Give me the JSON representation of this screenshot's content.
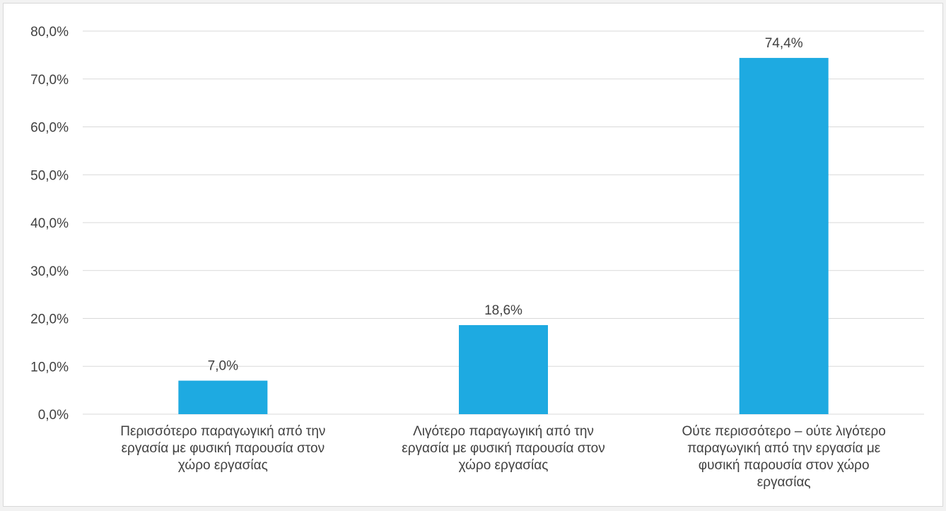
{
  "chart_data": {
    "type": "bar",
    "categories": [
      [
        "Περισσότερο παραγωγική από την",
        "εργασία με φυσική παρουσία στον",
        "χώρο εργασίας"
      ],
      [
        "Λιγότερο παραγωγική από την",
        "εργασία με φυσική παρουσία στον",
        "χώρο εργασίας"
      ],
      [
        "Ούτε περισσότερο – ούτε λιγότερο",
        "παραγωγική από την εργασία με",
        "φυσική παρουσία στον χώρο",
        "εργασίας"
      ]
    ],
    "values": [
      7.0,
      18.6,
      74.4
    ],
    "value_labels": [
      "7,0%",
      "18,6%",
      "74,4%"
    ],
    "ylim": [
      0,
      80
    ],
    "yticks": [
      0,
      10,
      20,
      30,
      40,
      50,
      60,
      70,
      80
    ],
    "ytick_labels": [
      "0,0%",
      "10,0%",
      "20,0%",
      "30,0%",
      "40,0%",
      "50,0%",
      "60,0%",
      "70,0%",
      "80,0%"
    ],
    "grid": true,
    "legend": "none",
    "colors": {
      "bar": "#1eaae1",
      "grid": "#d9d9d9",
      "text": "#404040"
    }
  }
}
